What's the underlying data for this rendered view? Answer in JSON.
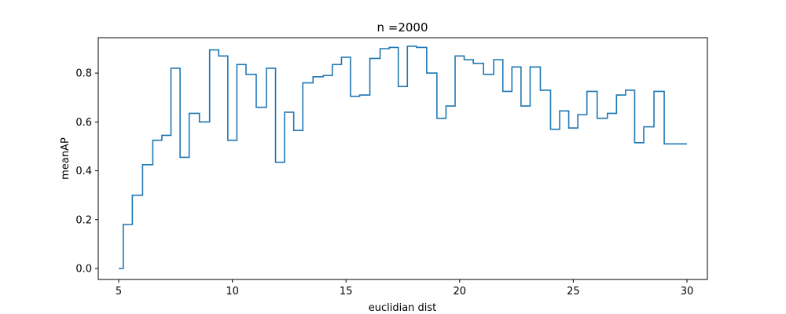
{
  "chart_data": {
    "type": "line",
    "drawstyle": "steps-mid",
    "title": "n =2000",
    "xlabel": "euclidian dist",
    "ylabel": "meanAP",
    "xlim": [
      4.1,
      30.9
    ],
    "ylim": [
      -0.045,
      0.945
    ],
    "xticks": [
      5,
      10,
      15,
      20,
      25,
      30
    ],
    "yticks": [
      0.0,
      0.2,
      0.4,
      0.6,
      0.8
    ],
    "ytick_labels": [
      "0.0",
      "0.2",
      "0.4",
      "0.6",
      "0.8"
    ],
    "grid": false,
    "color": "#1f77b4",
    "series": [
      {
        "x": [
          5.0,
          5.4,
          5.8,
          6.3,
          6.7,
          7.1,
          7.5,
          7.9,
          8.3,
          8.8,
          9.2,
          9.6,
          10.0,
          10.4,
          10.8,
          11.3,
          11.7,
          12.1,
          12.5,
          12.9,
          13.3,
          13.8,
          14.2,
          14.6,
          15.0,
          15.4,
          15.8,
          16.3,
          16.7,
          17.1,
          17.5,
          17.9,
          18.3,
          18.8,
          19.2,
          19.6,
          20.0,
          20.4,
          20.8,
          21.3,
          21.7,
          22.1,
          22.5,
          22.9,
          23.3,
          23.8,
          24.2,
          24.6,
          25.0,
          25.4,
          25.8,
          26.3,
          26.7,
          27.1,
          27.5,
          27.9,
          28.3,
          28.8,
          29.2,
          29.6,
          30.0
        ],
        "y": [
          0.0,
          0.18,
          0.3,
          0.425,
          0.525,
          0.545,
          0.82,
          0.455,
          0.635,
          0.6,
          0.895,
          0.87,
          0.525,
          0.835,
          0.795,
          0.66,
          0.82,
          0.435,
          0.64,
          0.565,
          0.76,
          0.785,
          0.79,
          0.835,
          0.865,
          0.705,
          0.71,
          0.86,
          0.9,
          0.905,
          0.745,
          0.91,
          0.905,
          0.8,
          0.615,
          0.665,
          0.87,
          0.855,
          0.84,
          0.795,
          0.855,
          0.725,
          0.825,
          0.665,
          0.825,
          0.73,
          0.57,
          0.645,
          0.575,
          0.63,
          0.725,
          0.615,
          0.635,
          0.71,
          0.73,
          0.515,
          0.58,
          0.725,
          0.51,
          0.51,
          0.51
        ]
      }
    ]
  }
}
